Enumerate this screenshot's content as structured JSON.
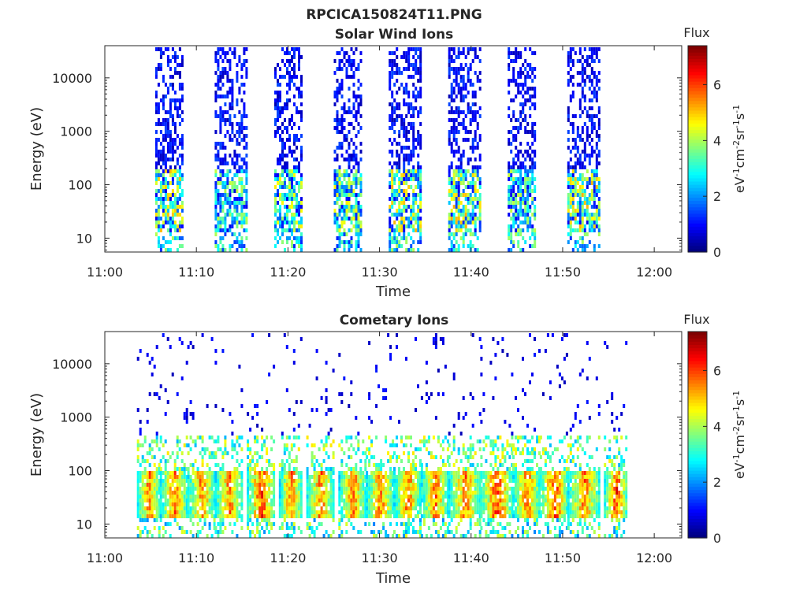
{
  "figure_title": "RPCICA150824T11.PNG",
  "chart_data": [
    {
      "type": "heatmap",
      "title": "Solar Wind Ions",
      "xlabel": "Time",
      "ylabel": "Energy (eV)",
      "x_ticks": [
        "11:00",
        "11:10",
        "11:20",
        "11:30",
        "11:40",
        "11:50",
        "12:00"
      ],
      "xlim": [
        "11:00",
        "12:03"
      ],
      "y_ticks": [
        "10",
        "100",
        "1000",
        "10000"
      ],
      "y_scale": "log",
      "ylim": [
        5.5,
        40000
      ],
      "colorbar": {
        "title": "Flux",
        "label": "eV-1cm-2sr-1s-1",
        "ticks": [
          "0",
          "2",
          "4",
          "6"
        ],
        "range": [
          0,
          7.4
        ],
        "colormap": "jet"
      },
      "sweeps": [
        {
          "start": "11:05.5",
          "end": "11:08.5",
          "peak_flux": 4.5
        },
        {
          "start": "11:12.0",
          "end": "11:15.5",
          "peak_flux": 3.5
        },
        {
          "start": "11:18.5",
          "end": "11:21.5",
          "peak_flux": 4.0
        },
        {
          "start": "11:25.0",
          "end": "11:28.0",
          "peak_flux": 4.0
        },
        {
          "start": "11:31.0",
          "end": "11:34.5",
          "peak_flux": 4.5
        },
        {
          "start": "11:37.5",
          "end": "11:41.0",
          "peak_flux": 4.5
        },
        {
          "start": "11:44.0",
          "end": "11:47.0",
          "peak_flux": 3.5
        },
        {
          "start": "11:50.5",
          "end": "11:54.0",
          "peak_flux": 4.5
        }
      ]
    },
    {
      "type": "heatmap",
      "title": "Cometary Ions",
      "xlabel": "Time",
      "ylabel": "Energy (eV)",
      "x_ticks": [
        "11:00",
        "11:10",
        "11:20",
        "11:30",
        "11:40",
        "11:50",
        "12:00"
      ],
      "xlim": [
        "11:00",
        "12:03"
      ],
      "y_ticks": [
        "10",
        "100",
        "1000",
        "10000"
      ],
      "y_scale": "log",
      "ylim": [
        5.5,
        40000
      ],
      "colorbar": {
        "title": "Flux",
        "label": "eV-1cm-2sr-1s-1",
        "ticks": [
          "0",
          "2",
          "4",
          "6"
        ],
        "range": [
          0,
          7.4
        ],
        "colormap": "jet"
      },
      "sweeps": [
        {
          "start": "11:03.5",
          "end": "11:06.0",
          "peak_flux": 6.5
        },
        {
          "start": "11:06.0",
          "end": "11:09.0",
          "peak_flux": 6.5
        },
        {
          "start": "11:09.0",
          "end": "11:12.0",
          "peak_flux": 6.5
        },
        {
          "start": "11:12.0",
          "end": "11:15.0",
          "peak_flux": 6.5
        },
        {
          "start": "11:15.5",
          "end": "11:18.5",
          "peak_flux": 7.0
        },
        {
          "start": "11:19.0",
          "end": "11:21.5",
          "peak_flux": 6.5
        },
        {
          "start": "11:22.0",
          "end": "11:25.0",
          "peak_flux": 6.5
        },
        {
          "start": "11:25.5",
          "end": "11:28.5",
          "peak_flux": 6.5
        },
        {
          "start": "11:28.5",
          "end": "11:31.5",
          "peak_flux": 6.5
        },
        {
          "start": "11:31.5",
          "end": "11:34.5",
          "peak_flux": 6.5
        },
        {
          "start": "11:34.5",
          "end": "11:37.5",
          "peak_flux": 6.5
        },
        {
          "start": "11:37.5",
          "end": "11:41.0",
          "peak_flux": 6.5
        },
        {
          "start": "11:41.0",
          "end": "11:44.5",
          "peak_flux": 7.0
        },
        {
          "start": "11:44.5",
          "end": "11:47.5",
          "peak_flux": 6.5
        },
        {
          "start": "11:47.5",
          "end": "11:50.5",
          "peak_flux": 7.0
        },
        {
          "start": "11:50.5",
          "end": "11:54.0",
          "peak_flux": 6.5
        },
        {
          "start": "11:54.5",
          "end": "11:57.0",
          "peak_flux": 7.0
        }
      ]
    }
  ]
}
